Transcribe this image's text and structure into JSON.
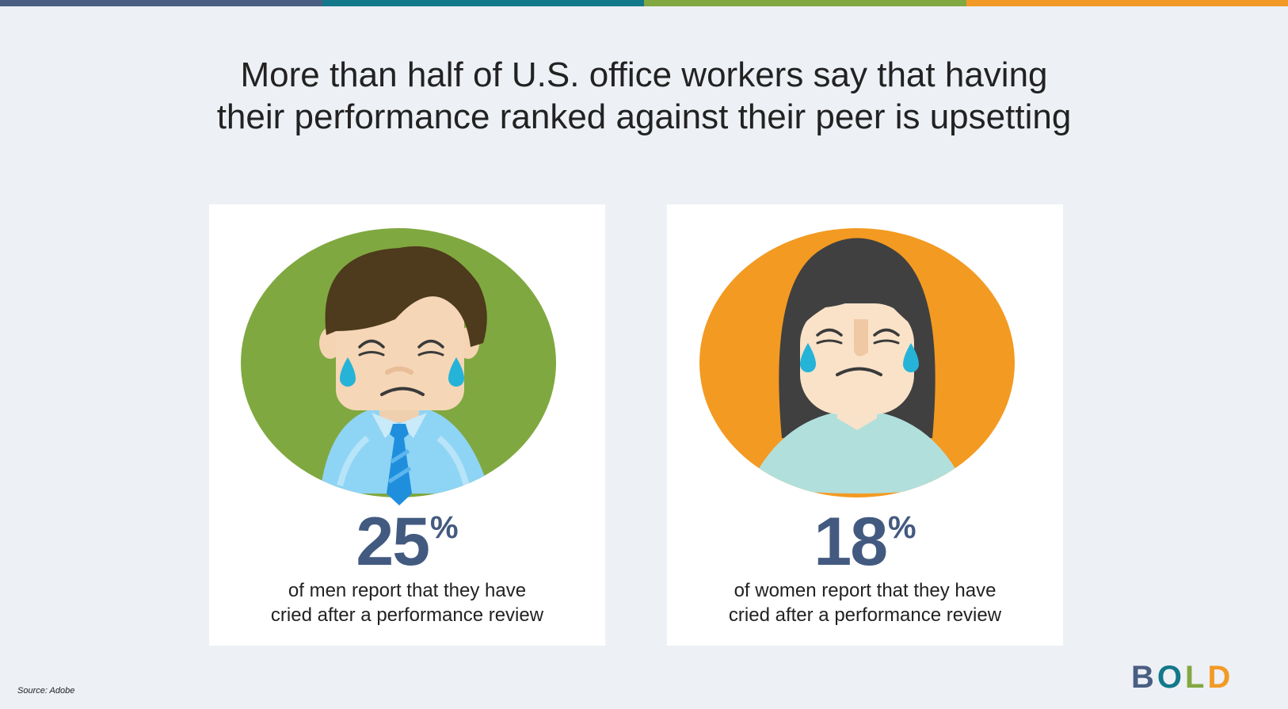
{
  "topbar_colors": [
    "#4a5e82",
    "#13788a",
    "#82a842",
    "#f29a25"
  ],
  "title": {
    "line1": "More than half of U.S. office workers say that having",
    "line2": "their performance ranked against their peer is upsetting"
  },
  "cards": [
    {
      "id": "men",
      "value": "25",
      "unit": "%",
      "desc_line1": "of men report that they have",
      "desc_line2": "cried after a performance review",
      "circle_color": "#80a840"
    },
    {
      "id": "women",
      "value": "18",
      "unit": "%",
      "desc_line1": "of women report that they have",
      "desc_line2": "cried after a performance review",
      "circle_color": "#f39a22"
    }
  ],
  "source": "Source: Adobe",
  "logo": {
    "letters": [
      "B",
      "O",
      "L",
      "D"
    ],
    "colors": [
      "#4a5e82",
      "#13788a",
      "#82a842",
      "#f29a25"
    ]
  }
}
